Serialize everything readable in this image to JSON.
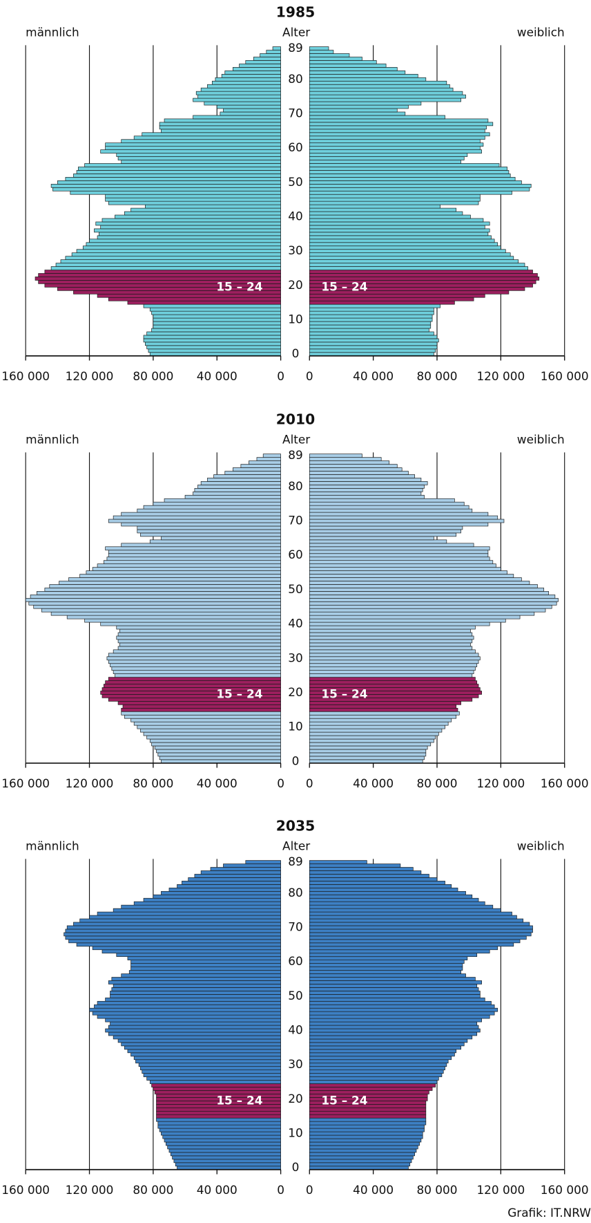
{
  "chart_data": [
    {
      "type": "pyramid",
      "title": "1985",
      "center_label": "Alter",
      "categories": [
        0,
        null,
        null,
        null,
        null,
        null,
        null,
        null,
        null,
        null,
        10,
        null,
        null,
        null,
        null,
        null,
        null,
        null,
        null,
        null,
        20,
        null,
        null,
        null,
        null,
        null,
        null,
        null,
        null,
        null,
        30,
        null,
        null,
        null,
        null,
        null,
        null,
        null,
        null,
        null,
        40,
        null,
        null,
        null,
        null,
        null,
        null,
        null,
        null,
        null,
        50,
        null,
        null,
        null,
        null,
        null,
        null,
        null,
        null,
        null,
        60,
        null,
        null,
        null,
        null,
        null,
        null,
        null,
        null,
        null,
        70,
        null,
        null,
        null,
        null,
        null,
        null,
        null,
        null,
        null,
        80,
        null,
        null,
        null,
        null,
        null,
        null,
        null,
        null,
        89
      ],
      "xlim": [
        0,
        160000
      ],
      "xticks": [
        0,
        {
          "value": 40000,
          "label": "40 000"
        },
        {
          "value": 80000,
          "label": "80 000"
        },
        {
          "value": 120000,
          "label": "120 000"
        },
        {
          "value": 160000,
          "label": "160 000"
        }
      ],
      "highlight": {
        "range": [
          15,
          24
        ],
        "label": "15 – 24",
        "color": "#9c1f5e"
      },
      "series": [
        {
          "name": "männlich",
          "side": "left",
          "color": "#6fcfdc",
          "values": [
            82000,
            83000,
            84000,
            85000,
            86000,
            86000,
            84000,
            81000,
            80000,
            80000,
            80000,
            80000,
            81000,
            82000,
            86000,
            96000,
            108000,
            115000,
            130000,
            140000,
            148000,
            152000,
            154000,
            152000,
            148000,
            144000,
            141000,
            138000,
            135000,
            131000,
            128000,
            124000,
            122000,
            120000,
            115000,
            114000,
            117000,
            113000,
            116000,
            112000,
            104000,
            98000,
            94000,
            85000,
            108000,
            110000,
            110000,
            132000,
            143000,
            144000,
            140000,
            135000,
            130000,
            128000,
            127000,
            123000,
            100000,
            102000,
            103000,
            113000,
            110000,
            110000,
            100000,
            92000,
            87000,
            75000,
            76000,
            76000,
            73000,
            55000,
            38000,
            36000,
            40000,
            48000,
            55000,
            52000,
            53000,
            50000,
            46000,
            43000,
            41000,
            37000,
            35000,
            30000,
            26000,
            22000,
            17000,
            13000,
            9000,
            5000
          ]
        },
        {
          "name": "weiblich",
          "side": "right",
          "color": "#6fcfdc",
          "values": [
            78000,
            79000,
            80000,
            80000,
            81000,
            80000,
            78000,
            75000,
            76000,
            76000,
            77000,
            77000,
            78000,
            78000,
            82000,
            91000,
            103000,
            110000,
            125000,
            135000,
            140000,
            142000,
            144000,
            143000,
            140000,
            137000,
            135000,
            131000,
            128000,
            126000,
            123000,
            120000,
            118000,
            116000,
            114000,
            112000,
            113000,
            110000,
            113000,
            109000,
            101000,
            96000,
            92000,
            82000,
            106000,
            107000,
            107000,
            127000,
            138000,
            139000,
            133000,
            129000,
            126000,
            125000,
            124000,
            119000,
            95000,
            97000,
            99000,
            108000,
            107000,
            109000,
            107000,
            110000,
            113000,
            110000,
            111000,
            115000,
            112000,
            85000,
            60000,
            55000,
            62000,
            70000,
            95000,
            98000,
            96000,
            90000,
            88000,
            86000,
            73000,
            68000,
            60000,
            55000,
            48000,
            42000,
            33000,
            25000,
            15000,
            12000
          ]
        }
      ]
    },
    {
      "type": "pyramid",
      "title": "2010",
      "center_label": "Alter",
      "categories": [
        0,
        null,
        null,
        null,
        null,
        null,
        null,
        null,
        null,
        null,
        10,
        null,
        null,
        null,
        null,
        null,
        null,
        null,
        null,
        null,
        20,
        null,
        null,
        null,
        null,
        null,
        null,
        null,
        null,
        null,
        30,
        null,
        null,
        null,
        null,
        null,
        null,
        null,
        null,
        null,
        40,
        null,
        null,
        null,
        null,
        null,
        null,
        null,
        null,
        null,
        50,
        null,
        null,
        null,
        null,
        null,
        null,
        null,
        null,
        null,
        60,
        null,
        null,
        null,
        null,
        null,
        null,
        null,
        null,
        null,
        70,
        null,
        null,
        null,
        null,
        null,
        null,
        null,
        null,
        null,
        80,
        null,
        null,
        null,
        null,
        null,
        null,
        null,
        null,
        89
      ],
      "xlim": [
        0,
        160000
      ],
      "xticks": [
        0,
        {
          "value": 40000,
          "label": "40 000"
        },
        {
          "value": 80000,
          "label": "80 000"
        },
        {
          "value": 120000,
          "label": "120 000"
        },
        {
          "value": 160000,
          "label": "160 000"
        }
      ],
      "highlight": {
        "range": [
          15,
          24
        ],
        "label": "15 – 24",
        "color": "#9c1f5e"
      },
      "series": [
        {
          "name": "männlich",
          "side": "left",
          "color": "#a8cde6",
          "values": [
            75000,
            76000,
            77000,
            78000,
            79000,
            81000,
            82000,
            84000,
            86000,
            88000,
            90000,
            92000,
            94000,
            98000,
            100000,
            100000,
            99000,
            102000,
            108000,
            112000,
            113000,
            112000,
            111000,
            110000,
            108000,
            104000,
            105000,
            106000,
            107000,
            108000,
            109000,
            108000,
            105000,
            102000,
            101000,
            102000,
            103000,
            102000,
            101000,
            103000,
            113000,
            123000,
            134000,
            144000,
            150000,
            155000,
            158000,
            160000,
            157000,
            153000,
            148000,
            145000,
            139000,
            133000,
            126000,
            122000,
            118000,
            115000,
            111000,
            109000,
            108000,
            108000,
            110000,
            100000,
            82000,
            75000,
            88000,
            90000,
            90000,
            100000,
            108000,
            105000,
            100000,
            90000,
            86000,
            80000,
            73000,
            60000,
            55000,
            54000,
            52000,
            50000,
            46000,
            42000,
            35000,
            30000,
            25000,
            20000,
            15000,
            11000
          ]
        },
        {
          "name": "weiblich",
          "side": "right",
          "color": "#a8cde6",
          "values": [
            71000,
            72000,
            73000,
            73000,
            74000,
            76000,
            78000,
            79000,
            81000,
            83000,
            85000,
            87000,
            89000,
            92000,
            94000,
            93000,
            92000,
            95000,
            102000,
            106000,
            108000,
            107000,
            106000,
            105000,
            104000,
            102000,
            103000,
            104000,
            105000,
            106000,
            107000,
            106000,
            104000,
            102000,
            101000,
            102000,
            103000,
            102000,
            101000,
            104000,
            113000,
            123000,
            132000,
            141000,
            148000,
            152000,
            155000,
            156000,
            154000,
            150000,
            147000,
            143000,
            138000,
            133000,
            128000,
            124000,
            120000,
            117000,
            115000,
            113000,
            112000,
            112000,
            113000,
            103000,
            86000,
            78000,
            92000,
            95000,
            96000,
            112000,
            122000,
            118000,
            112000,
            102000,
            100000,
            97000,
            91000,
            72000,
            70000,
            71000,
            72000,
            74000,
            70000,
            66000,
            62000,
            58000,
            55000,
            50000,
            45000,
            33000
          ]
        }
      ]
    },
    {
      "type": "pyramid",
      "title": "2035",
      "center_label": "Alter",
      "categories": [
        0,
        null,
        null,
        null,
        null,
        null,
        null,
        null,
        null,
        null,
        10,
        null,
        null,
        null,
        null,
        null,
        null,
        null,
        null,
        null,
        20,
        null,
        null,
        null,
        null,
        null,
        null,
        null,
        null,
        null,
        30,
        null,
        null,
        null,
        null,
        null,
        null,
        null,
        null,
        null,
        40,
        null,
        null,
        null,
        null,
        null,
        null,
        null,
        null,
        null,
        50,
        null,
        null,
        null,
        null,
        null,
        null,
        null,
        null,
        null,
        60,
        null,
        null,
        null,
        null,
        null,
        null,
        null,
        null,
        null,
        70,
        null,
        null,
        null,
        null,
        null,
        null,
        null,
        null,
        null,
        80,
        null,
        null,
        null,
        null,
        null,
        null,
        null,
        null,
        89
      ],
      "xlim": [
        0,
        160000
      ],
      "xticks": [
        0,
        {
          "value": 40000,
          "label": "40 000"
        },
        {
          "value": 80000,
          "label": "80 000"
        },
        {
          "value": 120000,
          "label": "120 000"
        },
        {
          "value": 160000,
          "label": "160 000"
        }
      ],
      "highlight": {
        "range": [
          15,
          24
        ],
        "label": "15 – 24",
        "color": "#9c1f5e"
      },
      "series": [
        {
          "name": "männlich",
          "side": "left",
          "color": "#3d80c4",
          "values": [
            65000,
            66000,
            67000,
            68000,
            69000,
            70000,
            71000,
            72000,
            73000,
            74000,
            75000,
            76000,
            77000,
            77000,
            78000,
            78000,
            78000,
            78000,
            78000,
            78000,
            78000,
            78000,
            79000,
            80000,
            81000,
            82000,
            84000,
            86000,
            87000,
            88000,
            89000,
            91000,
            92000,
            94000,
            96000,
            98000,
            100000,
            102000,
            105000,
            108000,
            110000,
            108000,
            107000,
            110000,
            115000,
            118000,
            120000,
            117000,
            115000,
            110000,
            107000,
            107000,
            106000,
            105000,
            108000,
            106000,
            100000,
            95000,
            94000,
            94000,
            94000,
            96000,
            103000,
            112000,
            118000,
            128000,
            133000,
            135000,
            136000,
            135000,
            134000,
            130000,
            126000,
            120000,
            115000,
            105000,
            100000,
            92000,
            86000,
            80000,
            75000,
            70000,
            65000,
            62000,
            58000,
            54000,
            50000,
            44000,
            36000,
            22000
          ]
        },
        {
          "name": "weiblich",
          "side": "right",
          "color": "#3d80c4",
          "values": [
            62000,
            63000,
            64000,
            65000,
            66000,
            67000,
            68000,
            69000,
            70000,
            71000,
            71000,
            72000,
            72000,
            73000,
            73000,
            73000,
            73000,
            73000,
            73000,
            73000,
            74000,
            74000,
            75000,
            77000,
            79000,
            80000,
            81000,
            83000,
            84000,
            85000,
            86000,
            87000,
            89000,
            91000,
            92000,
            95000,
            97000,
            99000,
            102000,
            105000,
            107000,
            106000,
            105000,
            108000,
            113000,
            116000,
            118000,
            116000,
            114000,
            110000,
            107000,
            107000,
            106000,
            105000,
            108000,
            104000,
            98000,
            95000,
            96000,
            96000,
            97000,
            99000,
            105000,
            113000,
            118000,
            128000,
            132000,
            136000,
            139000,
            140000,
            140000,
            138000,
            134000,
            130000,
            127000,
            120000,
            115000,
            110000,
            106000,
            102000,
            98000,
            93000,
            89000,
            85000,
            80000,
            75000,
            70000,
            65000,
            57000,
            36000
          ]
        }
      ]
    }
  ],
  "source": "Grafik: IT.NRW"
}
